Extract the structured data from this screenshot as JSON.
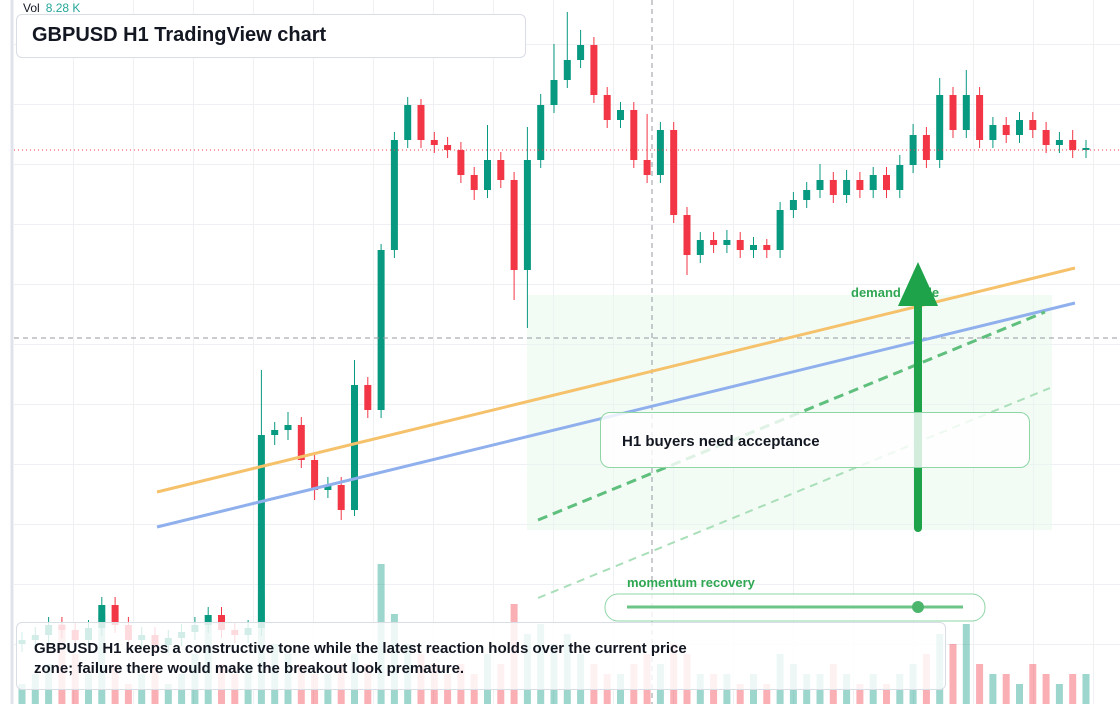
{
  "chart_data": {
    "type": "candlestick",
    "title": "GBPUSD H1 TradingView chart",
    "volume_label": "Vol",
    "volume_value": "8.28 K",
    "caption": "GBPUSD H1 keeps a constructive tone while the latest reaction holds over the current price zone; failure there would make the breakout look premature.",
    "annotations": [
      "demand guide",
      "H1 buyers need acceptance",
      "momentum recovery"
    ],
    "colors": {
      "up": "#089981",
      "down": "#f23645"
    },
    "ylim": [
      0,
      704
    ],
    "volume_ylim": [
      0,
      14
    ],
    "open": [
      60,
      64,
      69,
      79,
      74,
      64,
      76,
      99,
      79,
      64,
      69,
      59,
      66,
      72,
      79,
      89,
      74,
      69,
      76,
      269,
      274,
      279,
      244,
      214,
      219,
      194,
      319,
      294,
      454,
      564,
      599,
      564,
      559,
      554,
      529,
      514,
      544,
      524,
      434,
      544,
      599,
      624,
      644,
      659,
      609,
      584,
      594,
      544,
      529,
      574,
      489,
      449,
      464,
      459,
      464,
      454,
      459,
      454,
      494,
      504,
      514,
      524,
      509,
      524,
      514,
      529,
      514,
      539,
      569,
      544,
      609,
      574,
      609,
      564,
      579,
      569,
      584,
      574,
      559,
      564,
      554
    ],
    "high": [
      72,
      77,
      87,
      87,
      82,
      84,
      107,
      107,
      87,
      77,
      77,
      74,
      80,
      87,
      97,
      97,
      82,
      84,
      334,
      282,
      292,
      287,
      252,
      227,
      227,
      344,
      327,
      460,
      572,
      607,
      605,
      572,
      567,
      562,
      537,
      579,
      552,
      532,
      577,
      610,
      660,
      692,
      674,
      667,
      617,
      602,
      602,
      590,
      582,
      582,
      497,
      472,
      472,
      474,
      472,
      467,
      465,
      502,
      512,
      522,
      540,
      532,
      534,
      532,
      537,
      537,
      549,
      580,
      577,
      626,
      617,
      634,
      617,
      587,
      587,
      592,
      592,
      582,
      572,
      574,
      564
    ],
    "low": [
      52,
      56,
      61,
      66,
      56,
      56,
      68,
      71,
      56,
      56,
      51,
      51,
      58,
      64,
      71,
      66,
      61,
      61,
      68,
      259,
      264,
      236,
      204,
      206,
      184,
      188,
      286,
      286,
      446,
      556,
      556,
      551,
      546,
      521,
      504,
      506,
      516,
      404,
      376,
      536,
      591,
      616,
      636,
      601,
      576,
      576,
      536,
      521,
      521,
      481,
      429,
      441,
      451,
      451,
      446,
      446,
      446,
      446,
      486,
      496,
      506,
      501,
      501,
      506,
      506,
      506,
      506,
      531,
      536,
      536,
      566,
      566,
      556,
      556,
      561,
      561,
      566,
      551,
      551,
      546,
      546
    ],
    "close": [
      64,
      69,
      79,
      74,
      64,
      76,
      99,
      79,
      64,
      69,
      59,
      66,
      72,
      79,
      89,
      74,
      69,
      76,
      269,
      274,
      279,
      244,
      214,
      219,
      194,
      319,
      294,
      454,
      564,
      599,
      564,
      559,
      554,
      529,
      514,
      544,
      524,
      434,
      544,
      599,
      624,
      644,
      659,
      609,
      584,
      594,
      544,
      529,
      574,
      489,
      449,
      464,
      459,
      464,
      454,
      459,
      454,
      494,
      504,
      514,
      524,
      509,
      524,
      514,
      529,
      514,
      539,
      569,
      544,
      609,
      574,
      609,
      564,
      579,
      569,
      584,
      574,
      559,
      564,
      554,
      556
    ],
    "volume": [
      2,
      3,
      4,
      8,
      5,
      3,
      9,
      4,
      2,
      3,
      4,
      2,
      3,
      5,
      8,
      4,
      3,
      4,
      11,
      6,
      5,
      4,
      3,
      3,
      4,
      5,
      4,
      14,
      9,
      6,
      5,
      4,
      3,
      4,
      3,
      5,
      4,
      10,
      7,
      8,
      6,
      7,
      5,
      4,
      3,
      3,
      4,
      5,
      4,
      6,
      5,
      3,
      3,
      3,
      2,
      3,
      2,
      5,
      4,
      3,
      3,
      4,
      3,
      2,
      3,
      2,
      3,
      4,
      5,
      7,
      6,
      8,
      4,
      3,
      3,
      2,
      4,
      3,
      2,
      3,
      3
    ]
  }
}
